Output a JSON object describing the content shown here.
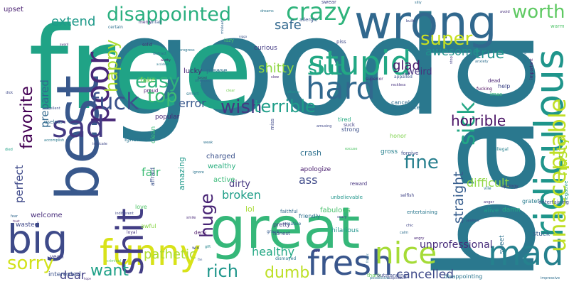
{
  "words": [
    {
      "text": "good",
      "color": "#2a788e"
    },
    {
      "text": "bad",
      "color": "#2a788e"
    },
    {
      "text": "free",
      "color": "#20a386"
    },
    {
      "text": "wrong",
      "color": "#31688e"
    },
    {
      "text": "great",
      "color": "#35b779"
    },
    {
      "text": "best",
      "color": "#38588c"
    },
    {
      "text": "big",
      "color": "#3e4a89"
    },
    {
      "text": "funny",
      "color": "#d8e219"
    },
    {
      "text": "mad",
      "color": "#26818e"
    },
    {
      "text": "fresh",
      "color": "#39568c"
    },
    {
      "text": "nice",
      "color": "#a5db36"
    },
    {
      "text": "shit",
      "color": "#433e85"
    },
    {
      "text": "ridiculous",
      "color": "#1f958b"
    },
    {
      "text": "stupid",
      "color": "#22a884"
    },
    {
      "text": "hard",
      "color": "#31688e"
    },
    {
      "text": "disappointed",
      "color": "#29af7f"
    },
    {
      "text": "crazy",
      "color": "#2fb47c"
    },
    {
      "text": "poor",
      "color": "#482878"
    },
    {
      "text": "sad",
      "color": "#443983"
    },
    {
      "text": "sorry",
      "color": "#d2e21b"
    },
    {
      "text": "unacceptable",
      "color": "#c0df25"
    },
    {
      "text": "fuck",
      "color": "#3b528b"
    },
    {
      "text": "wish",
      "color": "#453882"
    },
    {
      "text": "terrible",
      "color": "#1f9e89"
    },
    {
      "text": "easy",
      "color": "#2db27d"
    },
    {
      "text": "top",
      "color": "#3dbc74"
    },
    {
      "text": "slut",
      "color": "#21a685"
    },
    {
      "text": "super",
      "color": "#c8e020"
    },
    {
      "text": "worth",
      "color": "#5ec962"
    },
    {
      "text": "safe",
      "color": "#31688e"
    },
    {
      "text": "extend",
      "color": "#1f9a8a"
    },
    {
      "text": "favorite",
      "color": "#440154"
    },
    {
      "text": "happy",
      "color": "#addc30"
    },
    {
      "text": "shitty",
      "color": "#90d743"
    },
    {
      "text": "true",
      "color": "#20928c"
    },
    {
      "text": "sick",
      "color": "#22a785"
    },
    {
      "text": "awesome",
      "color": "#21918c"
    },
    {
      "text": "glad",
      "color": "#481a6c"
    },
    {
      "text": "weird",
      "color": "#46327e"
    },
    {
      "text": "horrible",
      "color": "#471063"
    },
    {
      "text": "fine",
      "color": "#277f8e"
    },
    {
      "text": "nasty",
      "color": "#b5de2b"
    },
    {
      "text": "want",
      "color": "#1fa188"
    },
    {
      "text": "pathetic",
      "color": "#addc30"
    },
    {
      "text": "rich",
      "color": "#1f968b"
    },
    {
      "text": "dumb",
      "color": "#bddf26"
    },
    {
      "text": "huge",
      "color": "#482475"
    },
    {
      "text": "dear",
      "color": "#424086"
    },
    {
      "text": "cancelled",
      "color": "#3e4989"
    },
    {
      "text": "unprofessional",
      "color": "#472c7a"
    },
    {
      "text": "healthy",
      "color": "#22a884"
    },
    {
      "text": "broken",
      "color": "#1f9e89"
    },
    {
      "text": "difficult",
      "color": "#90d743"
    },
    {
      "text": "straight",
      "color": "#365d8d"
    },
    {
      "text": "perfect",
      "color": "#3e4989"
    },
    {
      "text": "prepared",
      "color": "#31688e"
    },
    {
      "text": "error",
      "color": "#38588c"
    },
    {
      "text": "fair",
      "color": "#3dbc74"
    },
    {
      "text": "ass",
      "color": "#3e4989"
    },
    {
      "text": "dirty",
      "color": "#453781"
    },
    {
      "text": "upset",
      "color": "#481f70"
    },
    {
      "text": "lol",
      "color": "#a8db34"
    },
    {
      "text": "amazing",
      "color": "#1f9a8a"
    },
    {
      "text": "crash",
      "color": "#2d708e"
    },
    {
      "text": "fake",
      "color": "#81d34d"
    },
    {
      "text": "lucky",
      "color": "#482173"
    },
    {
      "text": "please",
      "color": "#2c718e"
    },
    {
      "text": "curious",
      "color": "#443b84"
    },
    {
      "text": "charged",
      "color": "#3b518b"
    },
    {
      "text": "wealthy",
      "color": "#29af7f"
    },
    {
      "text": "active",
      "color": "#38b977"
    },
    {
      "text": "apologize",
      "color": "#481b6d"
    },
    {
      "text": "gross",
      "color": "#27808e"
    },
    {
      "text": "fabulous",
      "color": "#4ac16d"
    },
    {
      "text": "hilarious",
      "color": "#1f948c"
    },
    {
      "text": "friendly",
      "color": "#2e6f8e"
    },
    {
      "text": "welcome",
      "color": "#472d7b"
    },
    {
      "text": "wasted",
      "color": "#3f4788"
    },
    {
      "text": "interested",
      "color": "#3b528b"
    },
    {
      "text": "yeah",
      "color": "#423f85"
    },
    {
      "text": "alive",
      "color": "#1f9e89"
    },
    {
      "text": "damn",
      "color": "#22a884"
    },
    {
      "text": "stuck",
      "color": "#365c8d"
    },
    {
      "text": "sweet",
      "color": "#2c718e"
    },
    {
      "text": "clean",
      "color": "#3aba76"
    },
    {
      "text": "popular",
      "color": "#482576"
    },
    {
      "text": "ignored",
      "color": "#2b748e"
    },
    {
      "text": "honor",
      "color": "#7fd34e"
    },
    {
      "text": "forgive",
      "color": "#3e4c8a"
    },
    {
      "text": "tired",
      "color": "#25ac82"
    },
    {
      "text": "strong",
      "color": "#3c4f8a"
    },
    {
      "text": "suck",
      "color": "#424186"
    },
    {
      "text": "cancel",
      "color": "#2f6c8e"
    },
    {
      "text": "desperate",
      "color": "#2d718e"
    },
    {
      "text": "honest",
      "color": "#3e4a89"
    },
    {
      "text": "pretty",
      "color": "#453781"
    },
    {
      "text": "reward",
      "color": "#46337f"
    },
    {
      "text": "unbelievable",
      "color": "#1f958b"
    },
    {
      "text": "entertaining",
      "color": "#2a778e"
    },
    {
      "text": "thank",
      "color": "#65cb5e"
    },
    {
      "text": "outstanding",
      "color": "#3e4c8a"
    },
    {
      "text": "disappointing",
      "color": "#2b758e"
    },
    {
      "text": "love",
      "color": "#52c569"
    },
    {
      "text": "awful",
      "color": "#89d548"
    },
    {
      "text": "affraid",
      "color": "#3b518b"
    },
    {
      "text": "deny",
      "color": "#481467"
    },
    {
      "text": "creative",
      "color": "#31688e"
    },
    {
      "text": "faithful",
      "color": "#2f6b8e"
    },
    {
      "text": "useless",
      "color": "#2f6c8e"
    },
    {
      "text": "miss",
      "color": "#3e4989"
    },
    {
      "text": "help",
      "color": "#3f4788"
    },
    {
      "text": "dead",
      "color": "#482173"
    },
    {
      "text": "lmao",
      "color": "#35b779"
    },
    {
      "text": "superior",
      "color": "#472a7a"
    },
    {
      "text": "fucking",
      "color": "#440256"
    },
    {
      "text": "illegal",
      "color": "#26828e"
    },
    {
      "text": "negative",
      "color": "#1fa088"
    },
    {
      "text": "grateful",
      "color": "#297b8e"
    },
    {
      "text": "apology",
      "color": "#44397f"
    },
    {
      "text": "vile",
      "color": "#2a788e"
    },
    {
      "text": "entertaining",
      "color": "#3c4f8a"
    },
    {
      "text": "important",
      "color": "#481d6f"
    },
    {
      "text": "lame",
      "color": "#2c728e"
    },
    {
      "text": "warm",
      "color": "#50c46a"
    },
    {
      "text": "swear",
      "color": "#404588"
    },
    {
      "text": "certain",
      "color": "#2d708e"
    },
    {
      "text": "unfair",
      "color": "#38588c"
    },
    {
      "text": "merry",
      "color": "#472f7d"
    },
    {
      "text": "lazy",
      "color": "#4ac16d"
    },
    {
      "text": "allergic",
      "color": "#3a548c"
    },
    {
      "text": "piss",
      "color": "#3e4a89"
    },
    {
      "text": "solid",
      "color": "#481f70"
    },
    {
      "text": "progress",
      "color": "#2a768e"
    },
    {
      "text": "slow",
      "color": "#482878"
    },
    {
      "text": "appalled",
      "color": "#39558c"
    },
    {
      "text": "reckless",
      "color": "#46307e"
    },
    {
      "text": "anxiety",
      "color": "#2e6e8e"
    },
    {
      "text": "proud",
      "color": "#481a6c"
    },
    {
      "text": "smart",
      "color": "#2a788e"
    },
    {
      "text": "clear",
      "color": "#75d054"
    },
    {
      "text": "excellent",
      "color": "#3b518b"
    },
    {
      "text": "accomplish",
      "color": "#29798e"
    },
    {
      "text": "intricate",
      "color": "#3f4889"
    },
    {
      "text": "ignore",
      "color": "#2b748e"
    },
    {
      "text": "died",
      "color": "#1fa187"
    },
    {
      "text": "smile",
      "color": "#482979"
    },
    {
      "text": "grave",
      "color": "#365c8d"
    },
    {
      "text": "gift",
      "color": "#24868e"
    },
    {
      "text": "fan",
      "color": "#3b528b"
    },
    {
      "text": "criminal",
      "color": "#5ac864"
    },
    {
      "text": "loyal",
      "color": "#46337f"
    },
    {
      "text": "win",
      "color": "#3d4d8a"
    },
    {
      "text": "dismayed",
      "color": "#2a778e"
    },
    {
      "text": "odd",
      "color": "#453781"
    },
    {
      "text": "scary",
      "color": "#3f4788"
    },
    {
      "text": "selfish",
      "color": "#414487"
    },
    {
      "text": "chic",
      "color": "#404688"
    },
    {
      "text": "calm",
      "color": "#2e6e8e"
    },
    {
      "text": "angry",
      "color": "#482677"
    },
    {
      "text": "anger",
      "color": "#46307e"
    },
    {
      "text": "jealous",
      "color": "#3e4989"
    },
    {
      "text": "fear",
      "color": "#31688e"
    },
    {
      "text": "trust",
      "color": "#471365"
    },
    {
      "text": "indifferent",
      "color": "#3f4788"
    },
    {
      "text": "hope",
      "color": "#472c7a"
    },
    {
      "text": "impressive",
      "color": "#2e6e8e"
    },
    {
      "text": "suspicious",
      "color": "#3f4889"
    },
    {
      "text": "possessive",
      "color": "#2c718e"
    },
    {
      "text": "frantic",
      "color": "#2d708e"
    },
    {
      "text": "kiss",
      "color": "#404588"
    },
    {
      "text": "offended",
      "color": "#31688e"
    },
    {
      "text": "dreams",
      "color": "#2a768e"
    },
    {
      "text": "silly",
      "color": "#2d708e"
    },
    {
      "text": "build",
      "color": "#3f4788"
    },
    {
      "text": "avoid",
      "color": "#472d7b"
    },
    {
      "text": "stop",
      "color": "#433e85"
    },
    {
      "text": "award",
      "color": "#472f7d"
    },
    {
      "text": "dick",
      "color": "#3e4989"
    },
    {
      "text": "distract",
      "color": "#2f6b8e"
    },
    {
      "text": "accident",
      "color": "#29798e"
    },
    {
      "text": "worthy",
      "color": "#471063"
    },
    {
      "text": "mislead",
      "color": "#31688e"
    },
    {
      "text": "nigga",
      "color": "#3b528b"
    },
    {
      "text": "forced",
      "color": "#482677"
    },
    {
      "text": "effective",
      "color": "#1f978b"
    },
    {
      "text": "weak",
      "color": "#2c718e"
    },
    {
      "text": "excuse",
      "color": "#52c569"
    },
    {
      "text": "amusing",
      "color": "#3f4788"
    }
  ]
}
